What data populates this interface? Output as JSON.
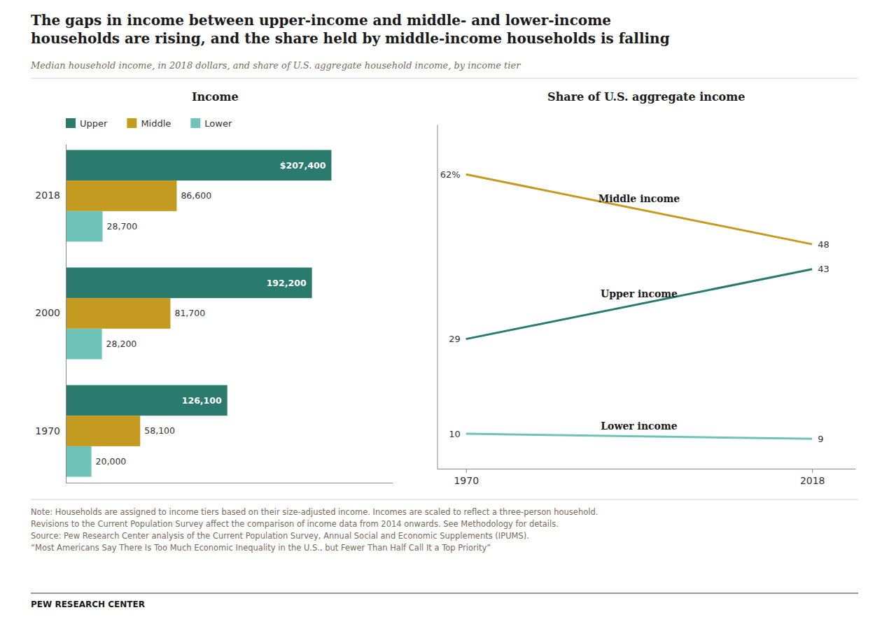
{
  "title": "The gaps in income between upper-income and middle- and lower-income\nhouseholds are rising, and the share held by middle-income households is falling",
  "subtitle": "Median household income, in 2018 dollars, and share of U.S. aggregate household income, by income tier",
  "notes": "Note: Households are assigned to income tiers based on their size-adjusted income. Incomes are scaled to reflect a three-person household.\nRevisions to the Current Population Survey affect the comparison of income data from 2014 onwards. See Methodology for details.\nSource: Pew Research Center analysis of the Current Population Survey, Annual Social and Economic Supplements (IPUMS).\n“Most Americans Say There Is Too Much Economic Inequality in the U.S., but Fewer Than Half Call It a Top Priority”",
  "credit": "PEW RESEARCH CENTER",
  "chart_data": [
    {
      "type": "bar",
      "orientation": "horizontal",
      "title": "Income",
      "categories": [
        "2018",
        "2000",
        "1970"
      ],
      "series": [
        {
          "name": "Upper",
          "color": "#2b7a6e",
          "values": [
            207400,
            192200,
            126100
          ],
          "value_labels": [
            "$207,400",
            "192,200",
            "126,100"
          ]
        },
        {
          "name": "Middle",
          "color": "#c49a20",
          "values": [
            86600,
            81700,
            58100
          ],
          "value_labels": [
            "86,600",
            "81,700",
            "58,100"
          ]
        },
        {
          "name": "Lower",
          "color": "#6ec4b8",
          "values": [
            28700,
            28200,
            20000
          ],
          "value_labels": [
            "28,700",
            "28,200",
            "20,000"
          ]
        }
      ],
      "xlim": [
        0,
        255000
      ],
      "data_labels": true,
      "legend": "top",
      "grid": false,
      "tick_labels": "y"
    },
    {
      "type": "line",
      "title": "Share of U.S. aggregate income",
      "x": [
        1970,
        2018
      ],
      "series": [
        {
          "name": "Middle income",
          "color": "#c49a20",
          "values": [
            62,
            48
          ],
          "value_labels": [
            "62%",
            "48"
          ]
        },
        {
          "name": "Upper income",
          "color": "#2b7a6e",
          "values": [
            29,
            43
          ],
          "value_labels": [
            "29",
            "43"
          ]
        },
        {
          "name": "Lower income",
          "color": "#6ec4b8",
          "values": [
            10,
            9
          ],
          "value_labels": [
            "10",
            "9"
          ]
        }
      ],
      "xlim": [
        1966,
        2024
      ],
      "xticks": [
        1970,
        2018
      ],
      "ylim": [
        3,
        72
      ],
      "data_labels": true,
      "grid": false,
      "tick_labels": "x"
    }
  ]
}
